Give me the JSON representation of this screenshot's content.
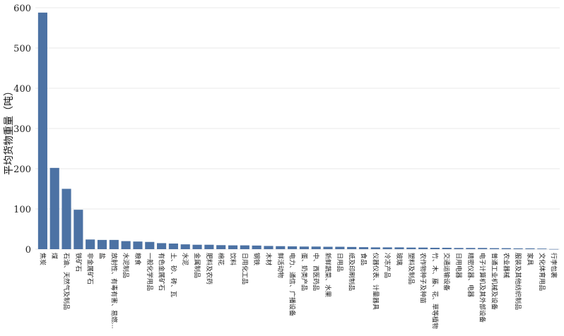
{
  "chart_data": {
    "type": "bar",
    "title": "",
    "xlabel": "",
    "ylabel": "平均货物重量（吨）",
    "ylim": [
      0,
      600
    ],
    "yticks": [
      0,
      100,
      200,
      300,
      400,
      500,
      600
    ],
    "grid": true,
    "bar_color": "#4c72a4",
    "categories": [
      "焦炭",
      "煤",
      "石油、天然气及制品",
      "铁矿石",
      "非金属矿石",
      "盐",
      "放射性、有毒有害、易燃...",
      "水泥制品",
      "粮食",
      "一般化学用品",
      "有色金属矿石",
      "土、砂、砖、瓦",
      "水泥",
      "金属制品",
      "肥料及农药",
      "棉花",
      "饮料",
      "日用化工品",
      "钢铁",
      "木材",
      "鲜活动物",
      "电力、通信、广播设备",
      "蛋、奶类产品",
      "中、西医药品",
      "新鲜蔬菜、水果",
      "日用品",
      "纸及印刷制品",
      "食品",
      "仪器仪表、计量器具",
      "冷冻产品",
      "玻璃",
      "塑料及制品",
      "农作物种子及种苗",
      "竹、木、藤、花、草等植物",
      "交通运输设备",
      "日用电器",
      "精密仪器、电器",
      "电子计算机及其外部设备",
      "普通工业机械及设备",
      "农业器械",
      "服装及其他纺织制品",
      "家具",
      "文化体育用品",
      "行李包裹"
    ],
    "values": [
      588,
      202,
      150,
      98,
      24,
      23,
      23,
      20,
      19,
      18,
      15,
      14,
      12,
      11,
      11,
      10,
      9.5,
      9.5,
      9,
      8,
      7.5,
      7,
      6.5,
      6.5,
      6,
      6,
      5.5,
      5,
      4.5,
      4.5,
      4.5,
      4,
      4,
      3.5,
      3.5,
      3,
      3,
      3,
      2.5,
      2.5,
      2,
      2,
      1.5,
      0.3
    ]
  }
}
